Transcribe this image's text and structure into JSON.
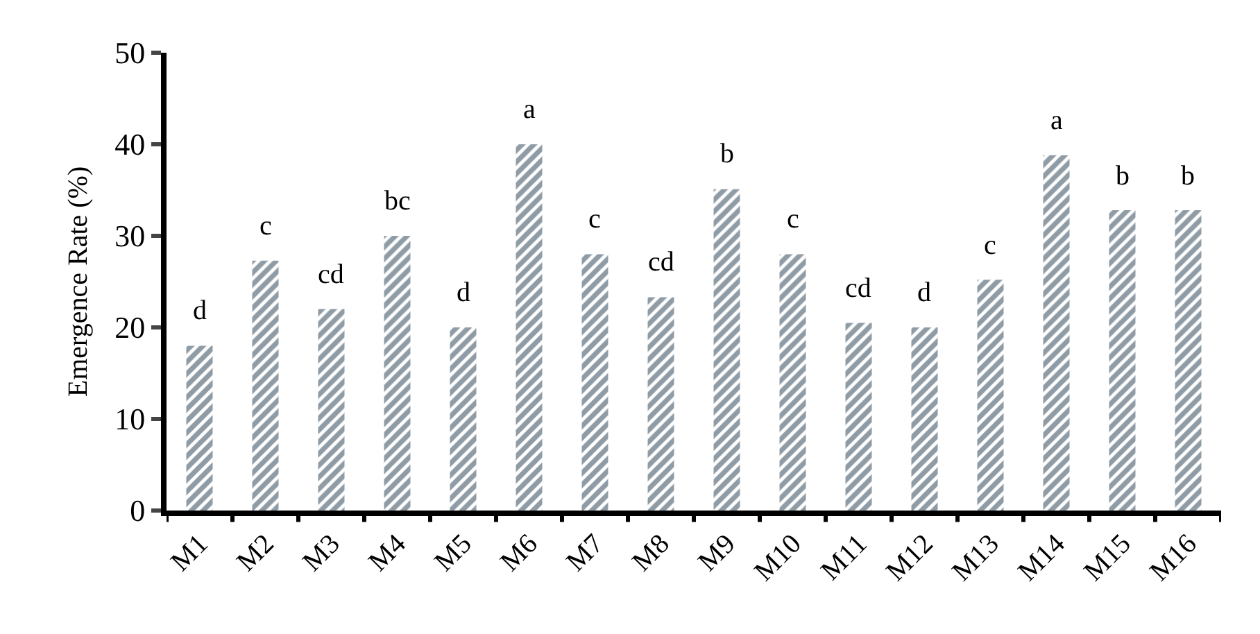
{
  "chart_data": {
    "type": "bar",
    "ylabel": "Emergence Rate (%)",
    "categories": [
      "M1",
      "M2",
      "M3",
      "M4",
      "M5",
      "M6",
      "M7",
      "M8",
      "M9",
      "M10",
      "M11",
      "M12",
      "M13",
      "M14",
      "M15",
      "M16"
    ],
    "values": [
      18,
      27.3,
      22,
      30,
      20,
      40,
      28,
      23.3,
      35.1,
      28,
      20.5,
      20,
      25.2,
      38.8,
      32.8,
      32.8
    ],
    "color": "#1f3a4d",
    "ylim": [
      0,
      50
    ],
    "yticks": [
      0,
      10,
      20,
      30,
      40,
      50
    ],
    "annotations": [
      {
        "text": "d",
        "x": "M1",
        "y": 18
      },
      {
        "text": "c",
        "x": "M2",
        "y": 27.3
      },
      {
        "text": "cd",
        "x": "M3",
        "y": 22
      },
      {
        "text": "bc",
        "x": "M4",
        "y": 30
      },
      {
        "text": "d",
        "x": "M5",
        "y": 20
      },
      {
        "text": "a",
        "x": "M6",
        "y": 40
      },
      {
        "text": "c",
        "x": "M7",
        "y": 28
      },
      {
        "text": "cd",
        "x": "M8",
        "y": 23.3
      },
      {
        "text": "b",
        "x": "M9",
        "y": 35.1
      },
      {
        "text": "c",
        "x": "M10",
        "y": 28
      },
      {
        "text": "cd",
        "x": "M11",
        "y": 20.5
      },
      {
        "text": "d",
        "x": "M12",
        "y": 20
      },
      {
        "text": "c",
        "x": "M13",
        "y": 25.2
      },
      {
        "text": "a",
        "x": "M14",
        "y": 38.8
      },
      {
        "text": "b",
        "x": "M15",
        "y": 32.8
      },
      {
        "text": "b",
        "x": "M16",
        "y": 32.8
      }
    ]
  }
}
